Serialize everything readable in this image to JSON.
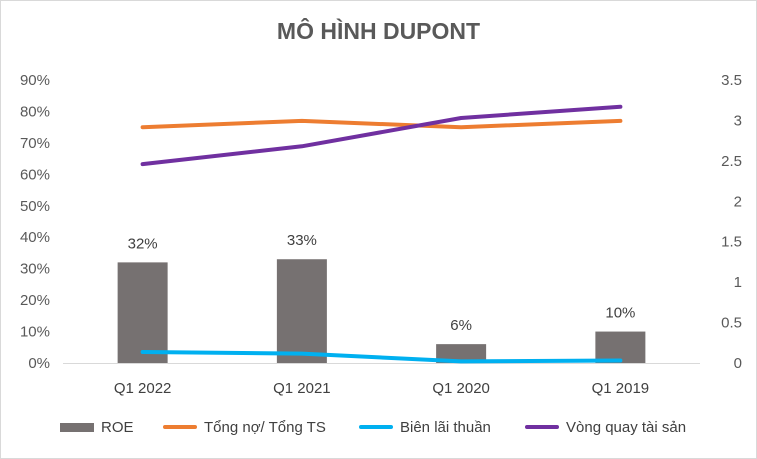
{
  "chart_data": {
    "type": "bar",
    "title": "MÔ HÌNH DUPONT",
    "categories": [
      "Q1 2022",
      "Q1 2021",
      "Q1 2020",
      "Q1 2019"
    ],
    "y_left_ticks": [
      "0%",
      "10%",
      "20%",
      "30%",
      "40%",
      "50%",
      "60%",
      "70%",
      "80%",
      "90%"
    ],
    "y_right_ticks": [
      "0",
      "0.5",
      "1",
      "1.5",
      "2",
      "2.5",
      "3",
      "3.5"
    ],
    "ylim_left": [
      0,
      0.9
    ],
    "ylim_right": [
      0,
      3.5
    ],
    "legend_position": "bottom",
    "grid": false,
    "series": [
      {
        "name": "ROE",
        "type": "bar",
        "axis": "left",
        "color": "#767171",
        "values": [
          0.32,
          0.33,
          0.06,
          0.1
        ],
        "data_labels": [
          "32%",
          "33%",
          "6%",
          "10%"
        ]
      },
      {
        "name": "Tổng nợ/ Tổng TS",
        "type": "line",
        "axis": "left",
        "color": "#ED7D31",
        "values": [
          0.75,
          0.77,
          0.75,
          0.77
        ]
      },
      {
        "name": "Biên lãi thuần",
        "type": "line",
        "axis": "left",
        "color": "#00B0F0",
        "values": [
          0.035,
          0.03,
          0.005,
          0.008
        ]
      },
      {
        "name": "Vòng quay tài sản",
        "type": "line",
        "axis": "right",
        "color": "#7030A0",
        "values": [
          2.46,
          2.68,
          3.03,
          3.17
        ]
      }
    ]
  }
}
